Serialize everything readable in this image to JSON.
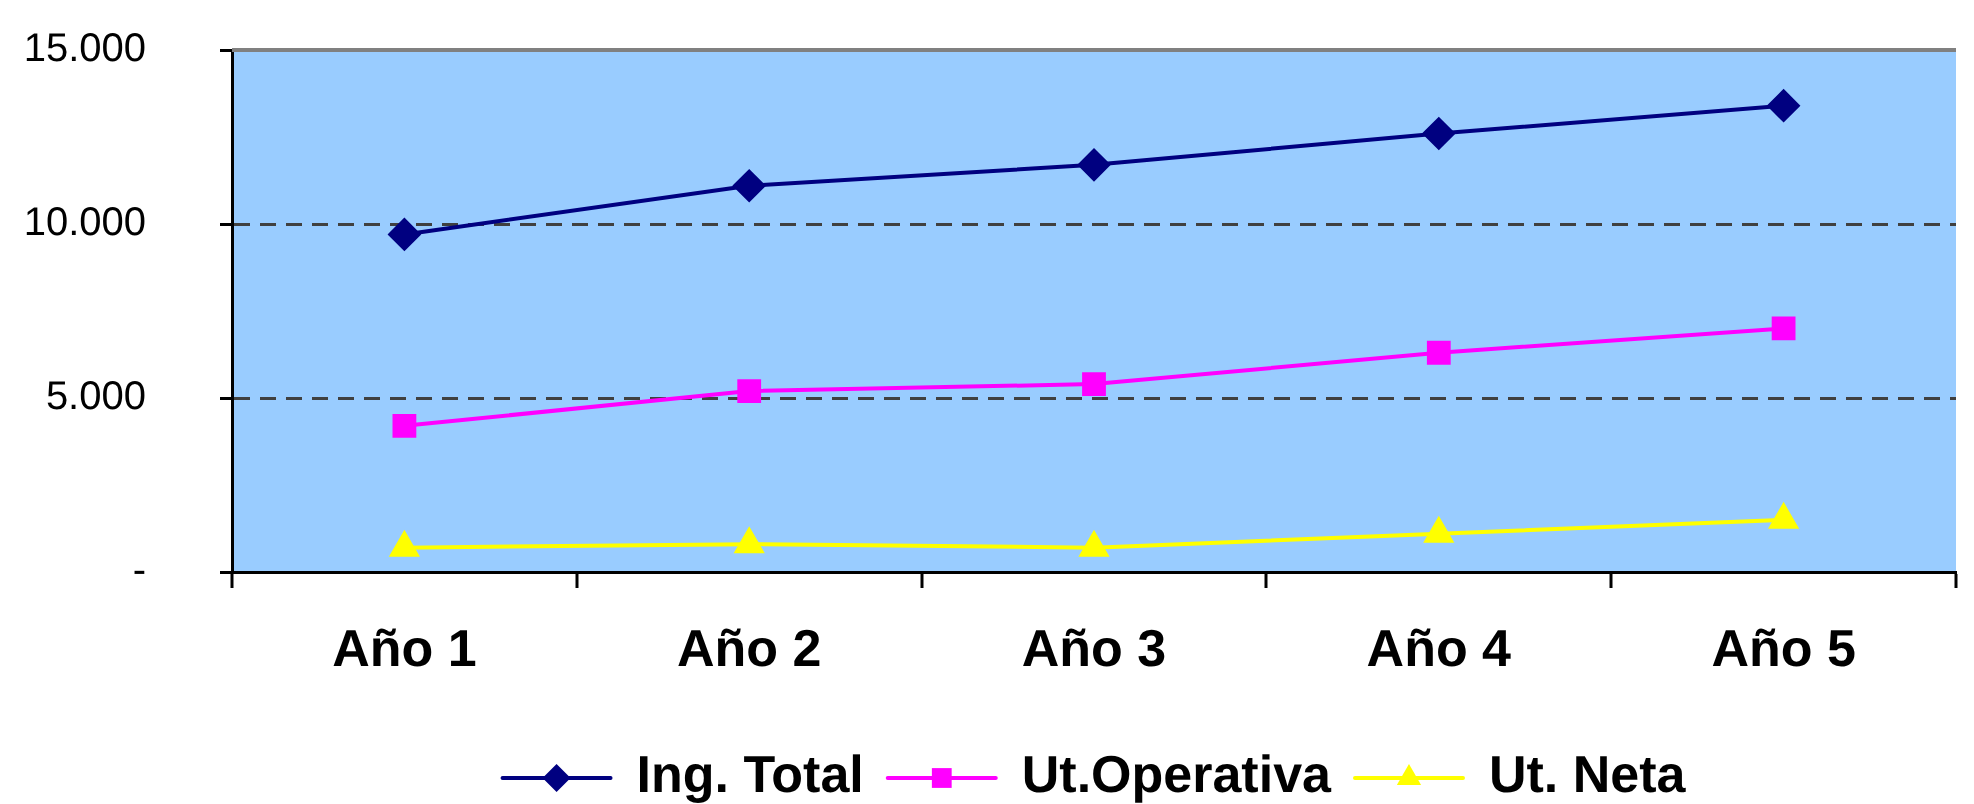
{
  "chart_data": {
    "type": "line",
    "categories": [
      "Año 1",
      "Año 2",
      "Año 3",
      "Año 4",
      "Año 5"
    ],
    "series": [
      {
        "name": "Ing. Total",
        "color": "#000080",
        "marker": "diamond",
        "values": [
          9700,
          11100,
          11700,
          12600,
          13400
        ]
      },
      {
        "name": "Ut.Operativa",
        "color": "#ff00ff",
        "marker": "square",
        "values": [
          4200,
          5200,
          5400,
          6300,
          7000
        ]
      },
      {
        "name": "Ut. Neta",
        "color": "#ffff00",
        "marker": "triangle",
        "values": [
          700,
          800,
          700,
          1100,
          1500
        ]
      }
    ],
    "ylim": [
      0,
      15000
    ],
    "yticks": [
      {
        "value": 0,
        "label": "-"
      },
      {
        "value": 5000,
        "label": "5.000"
      },
      {
        "value": 10000,
        "label": "10.000"
      },
      {
        "value": 15000,
        "label": "15.000"
      }
    ],
    "grid": "y",
    "legend": "bottom"
  }
}
